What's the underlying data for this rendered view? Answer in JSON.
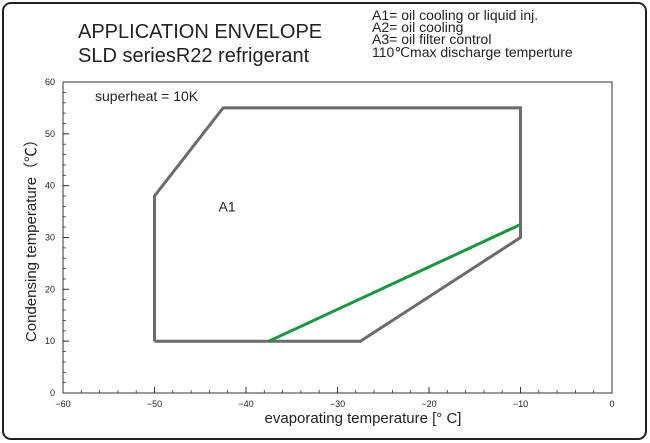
{
  "chart_data": {
    "type": "line",
    "title": "APPLICATION ENVELOPE",
    "subtitle": "SLD seriesR22 refrigerant",
    "legend_notes": [
      "A1= oil cooling or liquid inj.",
      "A2= oil cooling",
      "A3= oil filter control",
      "110℃max discharge temperture"
    ],
    "xlabel": "evaporating temperature [°  C]",
    "ylabel": "Condensing temperature（℃）",
    "xlim": [
      -60,
      0
    ],
    "ylim": [
      0,
      60
    ],
    "x_ticks": [
      -60,
      -50,
      -40,
      -30,
      -20,
      -10,
      0
    ],
    "y_ticks": [
      0,
      10,
      20,
      30,
      40,
      50,
      60
    ],
    "annotations": {
      "superheat": "superheat = 10K",
      "region_label": "A1",
      "region_label_at": [
        -43,
        35
      ]
    },
    "series": [
      {
        "color": "#6b6b6b",
        "values": [
          [
            -50,
            10
          ],
          [
            -50,
            38
          ],
          [
            -42.5,
            55
          ],
          [
            -10,
            55
          ],
          [
            -10,
            30
          ],
          [
            -27.5,
            10
          ],
          [
            -50,
            10
          ]
        ]
      },
      {
        "color": "#1a9641",
        "values": [
          [
            -37.5,
            10
          ],
          [
            -10,
            32.5
          ]
        ]
      }
    ]
  }
}
